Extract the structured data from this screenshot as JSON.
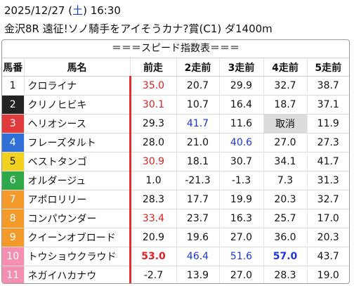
{
  "header": {
    "datetime": [
      "2025/12/27 (",
      "土",
      ") 16:30"
    ],
    "race": "金沢8R 遠征!ソノ騎手をアイそうカナ?賞(C1) ダ1400m"
  },
  "table": {
    "title": "＝＝＝スピード指数表＝＝＝",
    "columns": [
      "馬番",
      "馬名",
      "前走",
      "2走前",
      "3走前",
      "4走前",
      "5走前"
    ],
    "rows": [
      [
        "1",
        "クロライナ",
        "35.0",
        "20.7",
        "29.9",
        "32.7",
        "38.7"
      ],
      [
        "2",
        "クリノヒビキ",
        "30.1",
        "10.7",
        "16.4",
        "18.7",
        "37.1"
      ],
      [
        "3",
        "ヘリオシース",
        "29.3",
        "41.7",
        "11.6",
        "取消",
        "11.9"
      ],
      [
        "4",
        "フレーズタルト",
        "28.0",
        "21.0",
        "40.6",
        "27.0",
        "27.3"
      ],
      [
        "5",
        "ベストタンゴ",
        "30.9",
        "18.1",
        "30.7",
        "34.1",
        "41.7"
      ],
      [
        "6",
        "オルダージュ",
        "1.0",
        "-21.3",
        "-1.3",
        "7.3",
        "31.3"
      ],
      [
        "7",
        "アポロリリー",
        "28.3",
        "17.7",
        "19.9",
        "20.3",
        "32.7"
      ],
      [
        "8",
        "コンパウンダー",
        "33.4",
        "23.7",
        "16.3",
        "25.7",
        "17.0"
      ],
      [
        "9",
        "クイーンオブロード",
        "20.9",
        "19.6",
        "27.0",
        "36.0",
        "20.3"
      ],
      [
        "10",
        "トウショウクラウド",
        "53.0",
        "46.4",
        "51.6",
        "57.0",
        "43.7"
      ],
      [
        "11",
        "ネガイハカナウ",
        "-2.7",
        "13.9",
        "27.0",
        "28.3",
        "19.0"
      ]
    ]
  }
}
